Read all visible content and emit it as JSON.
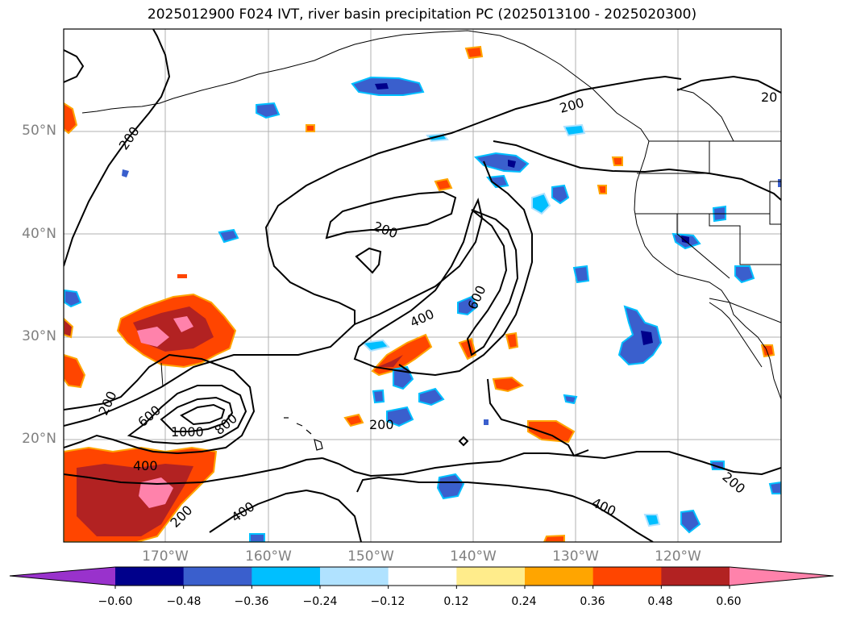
{
  "title": "2025012900 F024 IVT, river basin precipitation PC (2025013100 - 2025020300)",
  "axes": {
    "lat_labels": [
      "50°N",
      "40°N",
      "30°N",
      "20°N"
    ],
    "lon_labels": [
      "170°W",
      "160°W",
      "150°W",
      "140°W",
      "130°W",
      "120°W"
    ],
    "grid": true
  },
  "contour_labels": [
    "200",
    "200",
    "200",
    "200",
    "200",
    "200",
    "200",
    "20",
    "400",
    "400",
    "400",
    "400",
    "600",
    "600",
    "800",
    "1000"
  ],
  "colorbar": {
    "ticks": [
      "−0.60",
      "−0.48",
      "−0.36",
      "−0.24",
      "−0.12",
      "0.12",
      "0.24",
      "0.36",
      "0.48",
      "0.60"
    ],
    "colors": [
      "#9932cc",
      "#00008b",
      "#3a5fcd",
      "#00bfff",
      "#b0e2ff",
      "#ffffff",
      "#ffec8b",
      "#ffa500",
      "#ff4500",
      "#b22222",
      "#ff82ab"
    ],
    "extend": "both"
  }
}
